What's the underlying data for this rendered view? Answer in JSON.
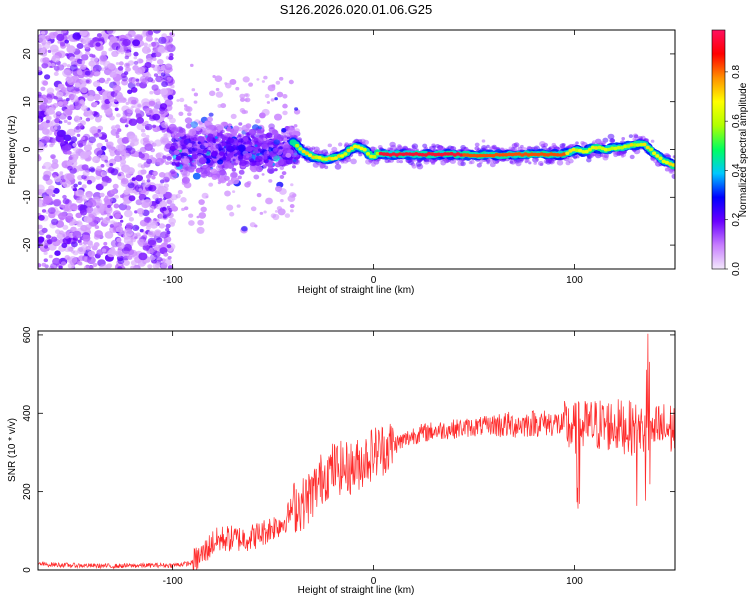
{
  "title": "S126.2026.020.01.06.G25",
  "chart_data": [
    {
      "type": "heatmap",
      "name": "spectrogram",
      "xlabel": "Height of straight line (km)",
      "ylabel": "Frequency (Hz)",
      "xlim": [
        -167,
        150
      ],
      "ylim": [
        -25,
        25
      ],
      "xticks": [
        -100,
        0,
        100
      ],
      "xtick_labels": [
        "-100",
        "0",
        "100"
      ],
      "yticks": [
        -20,
        -10,
        0,
        10,
        20
      ],
      "ytick_labels": [
        "-20",
        "-10",
        "0",
        "10",
        "20"
      ],
      "colorbar": {
        "label": "Normalized spectral amplitude",
        "range": [
          0,
          0.97
        ],
        "ticks": [
          0.0,
          0.2,
          0.4,
          0.6,
          0.8
        ],
        "tick_labels": [
          "0.0",
          "0.2",
          "0.4",
          "0.6",
          "0.8"
        ],
        "colors": [
          "#f3e8fb",
          "#c77dff",
          "#6a00ff",
          "#0000ff",
          "#00c8ff",
          "#00ff60",
          "#b0ff00",
          "#ffff00",
          "#ff9000",
          "#ff0000",
          "#ff1060"
        ]
      },
      "ridge": {
        "x": [
          -40,
          -35,
          -30,
          -25,
          -20,
          -15,
          -10,
          -8,
          -5,
          -2,
          0,
          2,
          5,
          10,
          20,
          30,
          40,
          50,
          60,
          70,
          80,
          90,
          95,
          100,
          105,
          110,
          115,
          120,
          125,
          130,
          135,
          140,
          145,
          150
        ],
        "y": [
          1.5,
          -0.5,
          -1.5,
          -2.0,
          -1.8,
          -1.2,
          0.5,
          0.6,
          0.2,
          -1.2,
          -1.5,
          -0.8,
          -1.0,
          -1.0,
          -1.0,
          -1.0,
          -1.0,
          -1.2,
          -1.2,
          -1.0,
          -1.0,
          -1.0,
          -1.0,
          0.0,
          -0.5,
          0.5,
          0.0,
          0.3,
          0.5,
          1.0,
          1.2,
          -1.0,
          -2.5,
          -3.5
        ]
      }
    },
    {
      "type": "line",
      "name": "snr",
      "xlabel": "Height of straight line (km)",
      "ylabel": "SNR (10 * v/v)",
      "xlim": [
        -167,
        150
      ],
      "ylim": [
        0,
        610
      ],
      "xticks": [
        -100,
        0,
        100
      ],
      "xtick_labels": [
        "-100",
        "0",
        "100"
      ],
      "yticks": [
        0,
        200,
        400,
        600
      ],
      "ytick_labels": [
        "0",
        "200",
        "400",
        "600"
      ],
      "color": "#ff2a2a",
      "series": [
        {
          "name": "SNR",
          "x": [
            -167,
            -150,
            -130,
            -110,
            -100,
            -90,
            -85,
            -80,
            -75,
            -70,
            -65,
            -60,
            -55,
            -50,
            -45,
            -40,
            -35,
            -30,
            -25,
            -20,
            -15,
            -10,
            -5,
            0,
            5,
            10,
            15,
            20,
            25,
            30,
            40,
            50,
            60,
            70,
            80,
            90,
            100,
            110,
            120,
            130,
            140,
            150
          ],
          "y": [
            15,
            12,
            10,
            12,
            12,
            18,
            40,
            70,
            80,
            80,
            80,
            85,
            95,
            110,
            120,
            160,
            170,
            200,
            240,
            260,
            260,
            260,
            280,
            300,
            310,
            320,
            330,
            345,
            350,
            355,
            360,
            365,
            370,
            370,
            375,
            375,
            360,
            370,
            370,
            360,
            360,
            360
          ]
        }
      ]
    }
  ]
}
